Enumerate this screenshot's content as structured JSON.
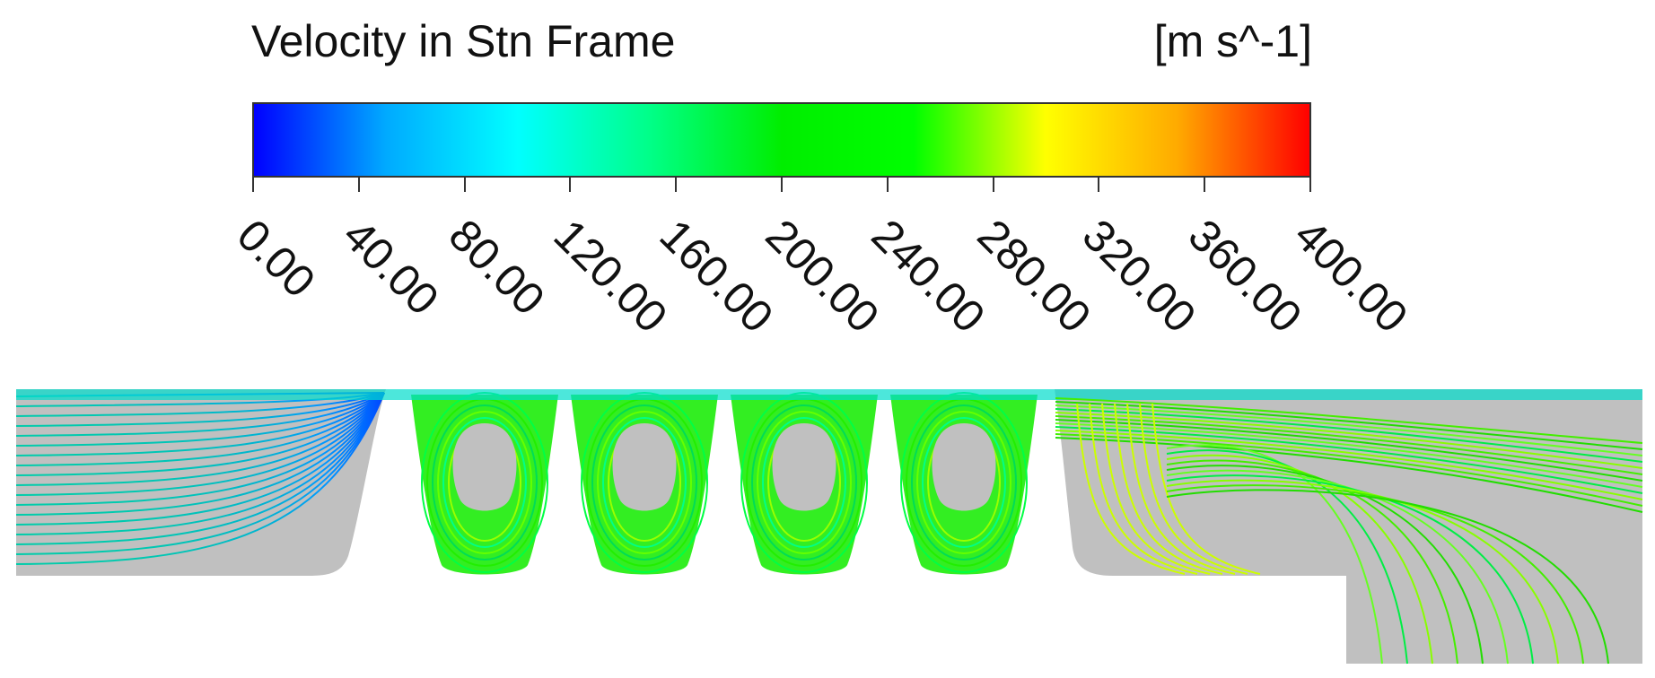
{
  "legend": {
    "title": "Velocity in Stn Frame",
    "units": "[m s^-1]",
    "range": [
      0,
      400
    ],
    "colormap": [
      "#0000ff",
      "#00aaff",
      "#00ffff",
      "#00ff88",
      "#00ee00",
      "#00ff00",
      "#ffff00",
      "#ffaa00",
      "#ff0000"
    ],
    "ticks": [
      "0.00",
      "40.00",
      "80.00",
      "120.00",
      "160.00",
      "200.00",
      "240.00",
      "280.00",
      "320.00",
      "360.00",
      "400.00"
    ]
  },
  "scene": {
    "solid_color": "#c0c0c0",
    "cavity_count": 4
  }
}
